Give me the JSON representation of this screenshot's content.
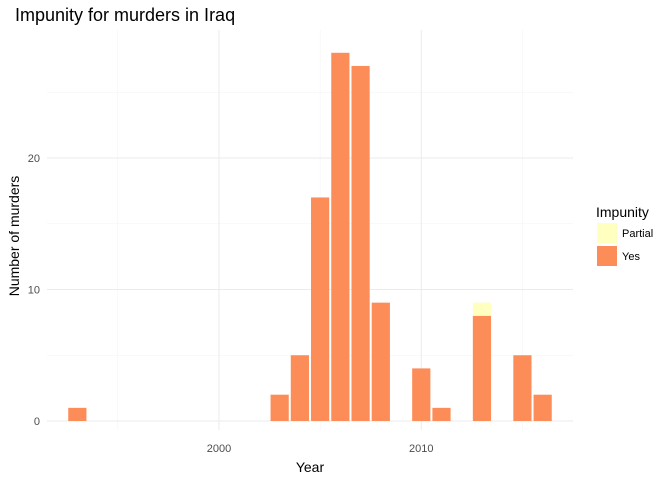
{
  "chart_data": {
    "type": "bar",
    "stacked": true,
    "title": "Impunity for murders in Iraq",
    "xlabel": "Year",
    "ylabel": "Number of murders",
    "xlim": [
      1991.5,
      2017.5
    ],
    "ylim": [
      0,
      29
    ],
    "x_ticks": [
      2000,
      2010
    ],
    "y_ticks": [
      0,
      10,
      20
    ],
    "grid": true,
    "legend": {
      "title": "Impunity",
      "placement": "right"
    },
    "x": [
      1993,
      2003,
      2004,
      2005,
      2006,
      2007,
      2008,
      2010,
      2011,
      2013,
      2015,
      2016
    ],
    "series": [
      {
        "name": "Yes",
        "color": "#fc8d59",
        "values": [
          1,
          2,
          5,
          17,
          28,
          27,
          9,
          4,
          1,
          8,
          5,
          2
        ]
      },
      {
        "name": "Partial",
        "color": "#ffffbf",
        "values": [
          0,
          0,
          0,
          0,
          0,
          0,
          0,
          0,
          0,
          1,
          0,
          0
        ]
      }
    ]
  }
}
